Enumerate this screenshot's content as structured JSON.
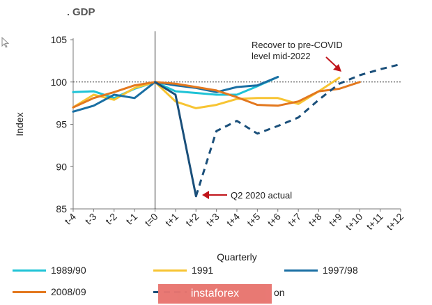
{
  "header": {
    "title": "GDP"
  },
  "legend": [
    {
      "label": "1989/90",
      "color": "#1fc3d6",
      "dashed": false
    },
    {
      "label": "1991",
      "color": "#f7c432",
      "dashed": false
    },
    {
      "label": "1997/98",
      "color": "#1a6fa3",
      "dashed": false
    },
    {
      "label": "2008/09",
      "color": "#e3781e",
      "dashed": false
    },
    {
      "label": "",
      "color": "#1a4f7a",
      "dashed": true
    }
  ],
  "legend_obscured_suffix": "on",
  "watermark": {
    "text": "instaforex"
  },
  "chart_data": {
    "type": "line",
    "title": "",
    "xlabel": "Quarterly",
    "ylabel": "Index",
    "ylim": [
      85,
      105
    ],
    "yticks": [
      85,
      90,
      95,
      100,
      105
    ],
    "categories": [
      "t-4",
      "t-3",
      "t-2",
      "t-1",
      "t=0",
      "t+1",
      "t+2",
      "t+3",
      "t+4",
      "t+5",
      "t+6",
      "t+7",
      "t+8",
      "t+9",
      "t+10",
      "t+11",
      "t+12"
    ],
    "reference_line": 100,
    "grid": false,
    "series": [
      {
        "name": "1989/90",
        "color": "#1fc3d6",
        "dashed": false,
        "x": [
          -4,
          -3,
          -2,
          -1,
          0,
          1,
          2,
          3,
          4,
          5,
          6
        ],
        "y": [
          98.8,
          98.9,
          98.1,
          99.2,
          100.0,
          98.9,
          98.7,
          98.5,
          98.5,
          99.5,
          100.6
        ]
      },
      {
        "name": "1991",
        "color": "#f7c432",
        "dashed": false,
        "x": [
          -4,
          -3,
          -2,
          -1,
          0,
          1,
          2,
          3,
          4,
          5,
          6,
          7,
          8,
          9
        ],
        "y": [
          97.0,
          98.5,
          97.9,
          99.3,
          100.0,
          97.7,
          96.9,
          97.3,
          98.0,
          98.1,
          98.1,
          97.4,
          98.9,
          100.5
        ]
      },
      {
        "name": "1997/98",
        "color": "#1a6fa3",
        "dashed": false,
        "x": [
          -4,
          -3,
          -2,
          -1,
          0,
          1,
          2,
          3,
          4,
          5,
          6
        ],
        "y": [
          96.5,
          97.2,
          98.5,
          98.1,
          100.0,
          99.6,
          99.3,
          98.8,
          99.4,
          99.6,
          100.6
        ]
      },
      {
        "name": "2008/09",
        "color": "#e3781e",
        "dashed": false,
        "x": [
          -4,
          -3,
          -2,
          -1,
          0,
          1,
          2,
          3,
          4,
          5,
          6,
          7,
          8,
          9,
          10
        ],
        "y": [
          97.0,
          98.1,
          98.8,
          99.6,
          100.0,
          99.8,
          99.4,
          99.0,
          98.2,
          97.3,
          97.2,
          97.7,
          98.9,
          99.2,
          100.0
        ]
      },
      {
        "name": "",
        "color": "#1a4f7a",
        "dashed": false,
        "x": [
          0,
          1,
          2
        ],
        "y": [
          100.0,
          98.5,
          86.5
        ]
      },
      {
        "name": "",
        "color": "#1a4f7a",
        "dashed": true,
        "x": [
          2,
          3,
          4,
          5,
          6,
          7,
          8,
          9,
          10,
          11,
          12
        ],
        "y": [
          86.5,
          94.2,
          95.4,
          93.9,
          94.8,
          95.8,
          97.9,
          99.8,
          100.8,
          101.5,
          102.1
        ]
      }
    ],
    "annotations": [
      {
        "text": "Recover to pre-COVID level mid-2022",
        "lines": [
          "Recover to pre-COVID",
          "level mid-2022"
        ],
        "x": 9,
        "y": 100.9
      },
      {
        "text": "Q2 2020 actual",
        "x": 2,
        "y": 86.5
      }
    ]
  }
}
